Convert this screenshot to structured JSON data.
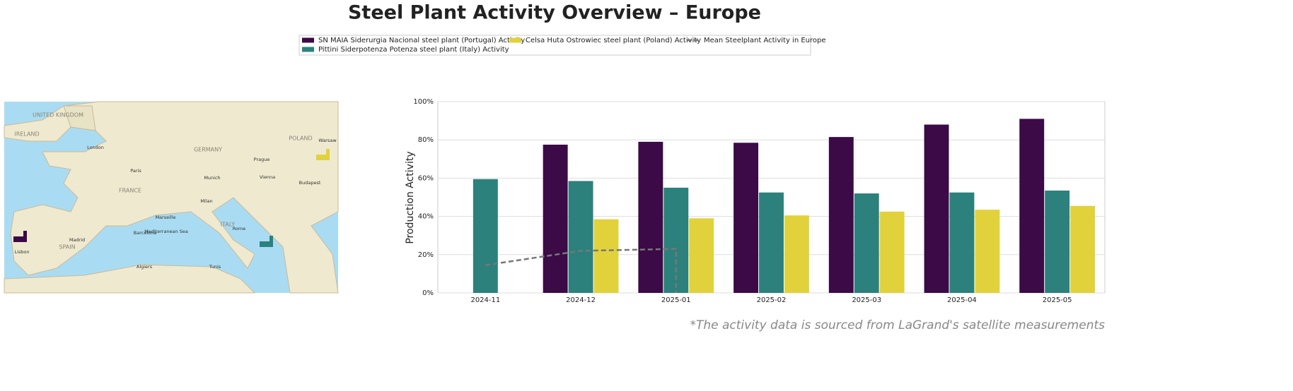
{
  "chart_data": {
    "type": "bar",
    "title": "Steel Plant Activity Overview – Europe",
    "y_label": "Production Activity",
    "footnote": "*The activity data is sourced from LaGrand's satellite measurements",
    "categories": [
      "2024-11",
      "2024-12",
      "2025-01",
      "2025-02",
      "2025-03",
      "2025-04",
      "2025-05"
    ],
    "series": [
      {
        "name": "SN MAIA Siderurgia Nacional steel plant (Portugal) Activity",
        "color": "#3b0a47",
        "values": [
          null,
          77.5,
          79,
          78.5,
          81.5,
          88,
          91
        ]
      },
      {
        "name": "Pittini Siderpotenza Potenza steel plant (Italy) Activity",
        "color": "#2c817c",
        "values": [
          59.5,
          58.5,
          55,
          52.5,
          52,
          52.5,
          53.5
        ]
      },
      {
        "name": "Celsa Huta Ostrowiec steel plant (Poland) Activity",
        "color": "#e1d23c",
        "values": [
          null,
          38.5,
          39,
          40.5,
          42.5,
          43.5,
          45.5
        ]
      },
      {
        "name": "Mean Steelplant Activity in Europe",
        "type": "line",
        "color": "#777777",
        "x": [
          "2024-11",
          "2024-12",
          "2025-01",
          "2025-01"
        ],
        "values": [
          14.5,
          22,
          23,
          0
        ]
      }
    ],
    "ylim": [
      0,
      100
    ],
    "yticks": [
      {
        "value": 0,
        "label": "0%"
      },
      {
        "value": 20,
        "label": "20%"
      },
      {
        "value": 40,
        "label": "40%"
      },
      {
        "value": 60,
        "label": "60%"
      },
      {
        "value": 80,
        "label": "80%"
      },
      {
        "value": 100,
        "label": "100%"
      }
    ],
    "grid": true
  },
  "map": {
    "labels": [
      "UNITED KINGDOM",
      "IRELAND",
      "London",
      "Paris",
      "FRANCE",
      "SPAIN",
      "Madrid",
      "Barcelona",
      "Lisbon",
      "GERMANY",
      "Munich",
      "Milan",
      "ITALY",
      "Rome",
      "POLAND",
      "Warsaw",
      "Prague",
      "Vienna",
      "Budapest",
      "Marseille",
      "Algiers",
      "Tunis",
      "Mediterranean Sea"
    ]
  }
}
